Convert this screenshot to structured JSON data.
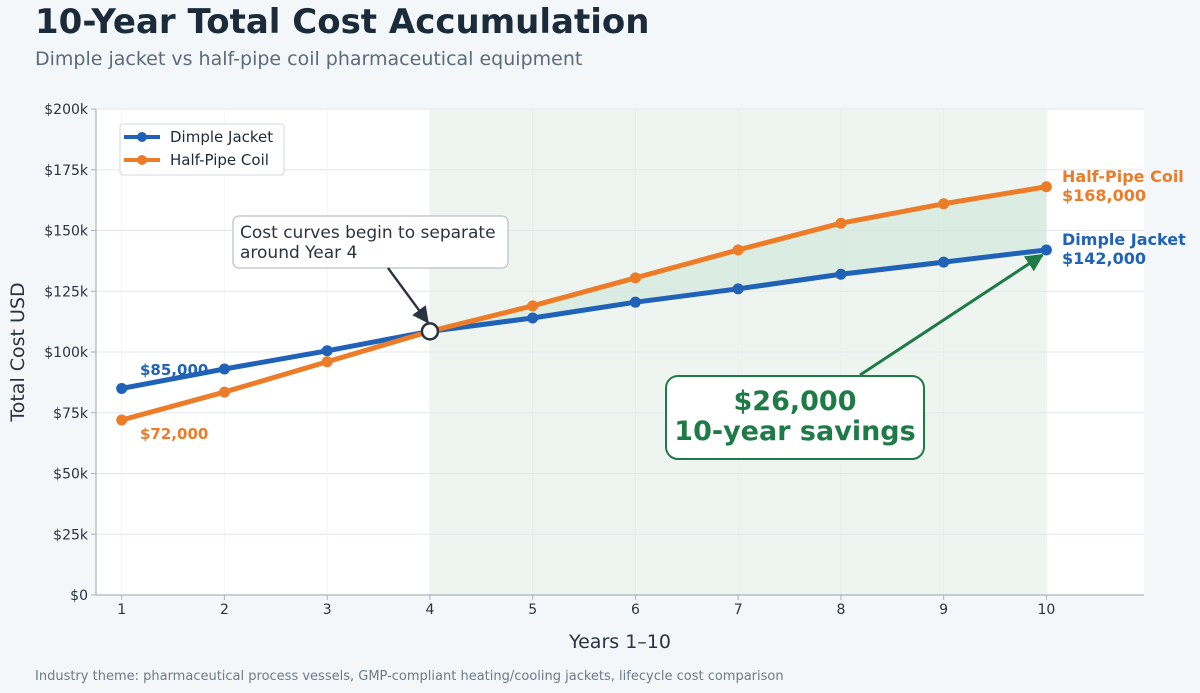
{
  "header": {
    "title": "10-Year Total Cost Accumulation",
    "subtitle": "Dimple jacket vs half-pipe coil pharmaceutical equipment"
  },
  "footnote": "Industry theme: pharmaceutical process vessels, GMP-compliant heating/cooling jackets, lifecycle cost comparison",
  "colors": {
    "dimple": "#1f62b8",
    "halfpipe": "#ec7c28",
    "savings": "#1e7a46",
    "shade": "#e3efe7",
    "grid": "#e4e7ea",
    "axis": "#a9b4bd",
    "text": "#2a3340"
  },
  "chart_data": {
    "type": "line",
    "x": [
      1,
      2,
      3,
      4,
      5,
      6,
      7,
      8,
      9,
      10
    ],
    "xlabel": "Years 1–10",
    "ylabel": "Total Cost USD",
    "xlim": [
      0.75,
      10.95
    ],
    "ylim": [
      0,
      200000
    ],
    "yticks": [
      0,
      25000,
      50000,
      75000,
      100000,
      125000,
      150000,
      175000,
      200000
    ],
    "ytick_labels": [
      "$0",
      "$25k",
      "$50k",
      "$75k",
      "$100k",
      "$125k",
      "$150k",
      "$175k",
      "$200k"
    ],
    "xticks": [
      1,
      2,
      3,
      4,
      5,
      6,
      7,
      8,
      9,
      10
    ],
    "xtick_labels": [
      "1",
      "2",
      "3",
      "4",
      "5",
      "6",
      "7",
      "8",
      "9",
      "10"
    ],
    "grid": true,
    "legend": "top-left",
    "series": [
      {
        "name": "Dimple Jacket",
        "key": "dimple",
        "values": [
          85000,
          93000,
          100500,
          108500,
          114000,
          120500,
          126000,
          132000,
          137000,
          142000
        ],
        "start_label": "$85,000",
        "end_label_name": "Dimple Jacket",
        "end_label_value": "$142,000"
      },
      {
        "name": "Half-Pipe Coil",
        "key": "halfpipe",
        "values": [
          72000,
          83500,
          96000,
          108500,
          119000,
          130500,
          142000,
          153000,
          161000,
          168000
        ],
        "start_label": "$72,000",
        "end_label_name": "Half-Pipe Coil",
        "end_label_value": "$168,000"
      }
    ],
    "shaded_region": {
      "x_from": 4,
      "x_to": 10
    },
    "annotations": {
      "crossover": {
        "line1": "Cost curves begin to separate",
        "line2": "around Year 4",
        "x": 4,
        "y": 108500
      },
      "savings": {
        "line1": "$26,000",
        "line2": "10-year savings",
        "target_x": 10,
        "target_y": 142000
      }
    }
  }
}
